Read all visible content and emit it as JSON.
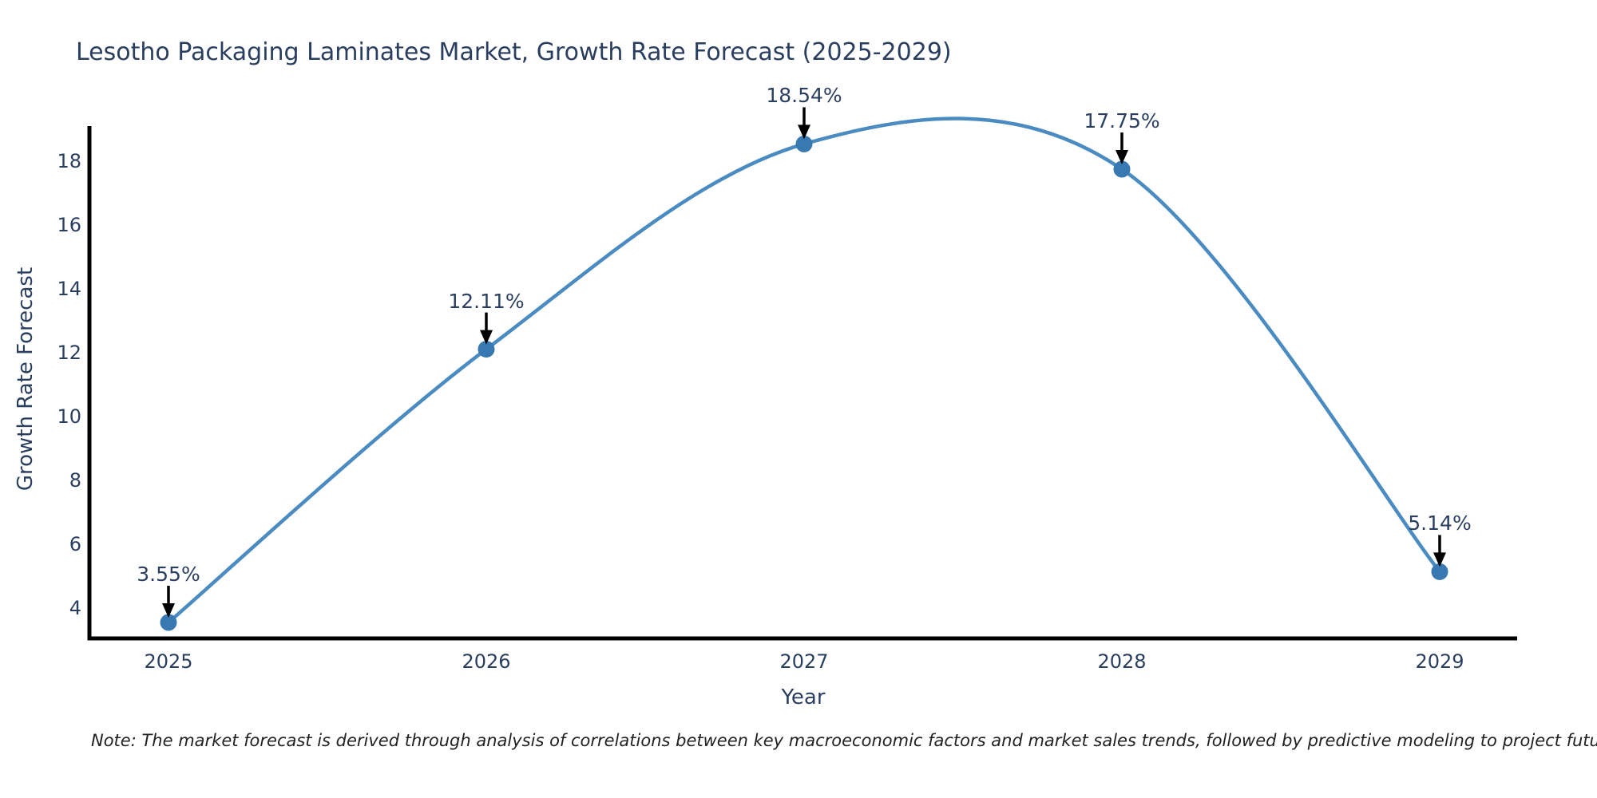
{
  "title": "Lesotho Packaging Laminates Market, Growth Rate Forecast (2025-2029)",
  "note": "Note: The market forecast is derived through analysis of correlations between key macroeconomic factors and market sales trends, followed by predictive modeling to project future sales",
  "chart_data": {
    "type": "line",
    "title": "Lesotho Packaging Laminates Market, Growth Rate Forecast (2025-2029)",
    "x": [
      2025,
      2026,
      2027,
      2028,
      2029
    ],
    "values": [
      3.55,
      12.11,
      18.54,
      17.75,
      5.14
    ],
    "point_labels": [
      "3.55%",
      "12.11%",
      "18.54%",
      "17.75%",
      "5.14%"
    ],
    "xlabel": "Year",
    "ylabel": "Growth Rate Forecast",
    "xtick_labels": [
      "2025",
      "2026",
      "2027",
      "2028",
      "2029"
    ],
    "yticks": [
      4,
      6,
      8,
      10,
      12,
      14,
      16,
      18
    ],
    "ylim": [
      3.05,
      19.05
    ],
    "grid": false,
    "legend": "none",
    "curve": "spline",
    "annotation_style": "black-down-arrows",
    "colors": {
      "line": "#4a8bc2",
      "marker": "#3879b1",
      "axis": "#000000",
      "text": "#2a3f5f",
      "arrow": "#000000",
      "note_text": "#222222",
      "background": "#ffffff"
    }
  }
}
